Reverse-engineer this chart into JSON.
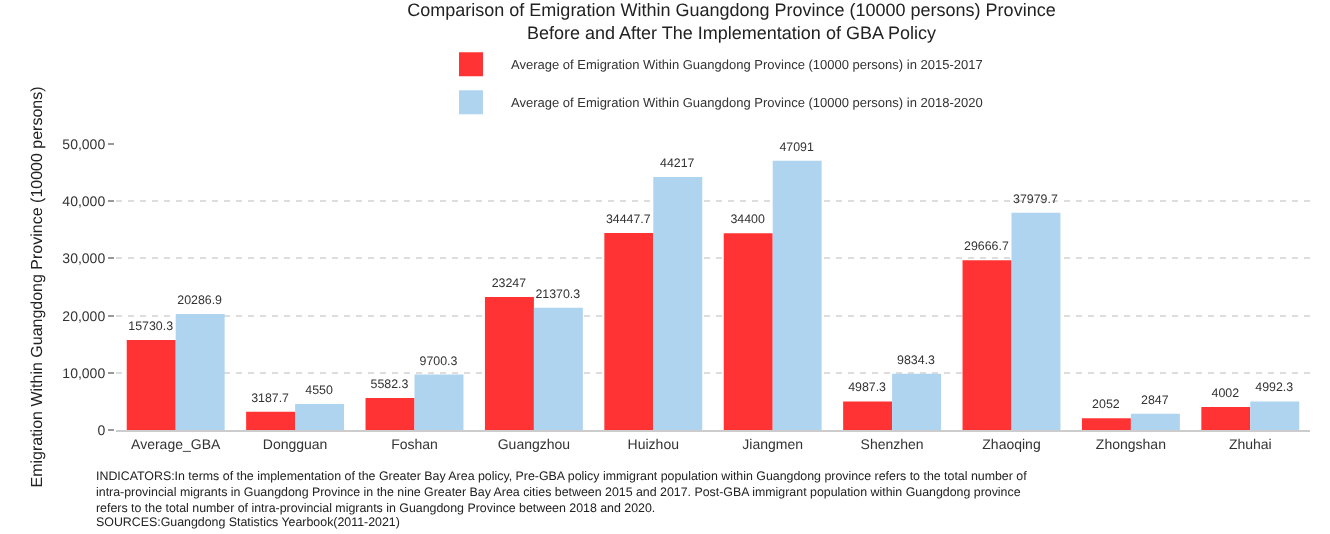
{
  "chart_data": {
    "type": "bar",
    "title": "Comparison of Emigration Within Guangdong Province (10000 persons) Province Before and After The Implementation of GBA Policy",
    "ylabel": "Emigration Within Guangdong Province (10000 persons)",
    "categories": [
      "Average_GBA",
      "Dongguan",
      "Foshan",
      "Guangzhou",
      "Huizhou",
      "Jiangmen",
      "Shenzhen",
      "Zhaoqing",
      "Zhongshan",
      "Zhuhai"
    ],
    "series": [
      {
        "name": "Average of Emigration Within Guangdong Province (10000 persons) in 2015-2017",
        "color": "#ff3333",
        "values": [
          15730.3,
          3187.7,
          5582.3,
          23247,
          34447.7,
          34400,
          4987.3,
          29666.7,
          2052,
          4002
        ]
      },
      {
        "name": "Average of Emigration Within Guangdong Province (10000 persons) in 2018-2020",
        "color": "#aed4f0",
        "values": [
          20286.9,
          4550,
          9700.3,
          21370.3,
          44217,
          47091,
          9834.3,
          37979.7,
          2847,
          4992.3
        ]
      }
    ],
    "ylim": [
      0,
      50000
    ],
    "yticks": [
      0,
      {
        "value": 10000,
        "label": "10,000"
      },
      {
        "value": 20000,
        "label": "20,000"
      },
      {
        "value": 30000,
        "label": "30,000"
      },
      {
        "value": 40000,
        "label": "40,000"
      },
      {
        "value": 50000,
        "label": "50,000"
      }
    ],
    "grid": "y",
    "legend": "top",
    "data_labels": true,
    "annotations": [
      "INDICATORS:In terms of the implementation of the Greater Bay Area policy, Pre-GBA policy immigrant population within Guangdong province refers to the total number of intra-provincial migrants in Guangdong Province in the nine Greater Bay Area cities between 2015 and 2017. Post-GBA immigrant population within Guangdong province refers to the total number of intra-provincial migrants in Guangdong Province between 2018 and 2020.",
      "SOURCES:Guangdong Statistics Yearbook(2011-2021)"
    ]
  }
}
